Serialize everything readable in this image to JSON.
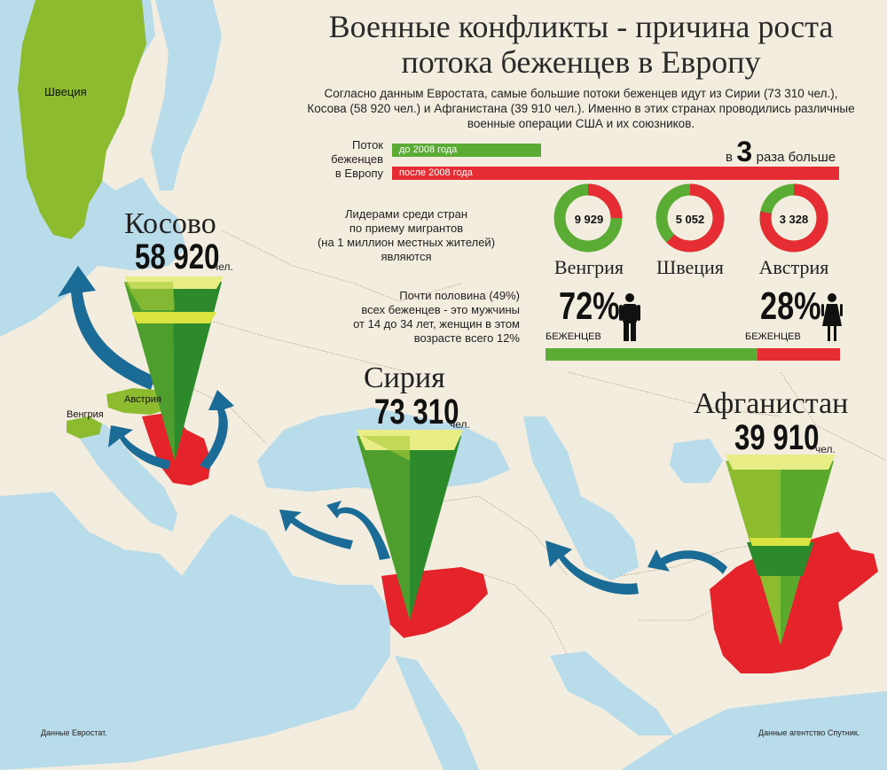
{
  "header": {
    "title_line1": "Военные конфликты - причина роста",
    "title_line2": "потока беженцев в Европу",
    "subtitle": "Согласно данным Евростата, самые большие потоки беженцев идут из Сирии (73 310 чел.), Косова (58 920 чел.) и Афганистана (39 910 чел.). Именно в этих странах проводились различные военные операции США и их союзников."
  },
  "flow_comparison": {
    "label_line1": "Поток",
    "label_line2": "беженцев",
    "label_line3": "в Европу",
    "before_label": "до 2008 года",
    "after_label": "после 2008 года",
    "multiplier_prefix": "в",
    "multiplier_value": 3,
    "multiplier_suffix": "раза больше",
    "color_before": "#5aac34",
    "color_after": "#e52d33"
  },
  "leaders": {
    "label_line1": "Лидерами среди стран",
    "label_line2": "по приему мигрантов",
    "label_line3": "(на 1 миллион местных жителей)",
    "label_line4": "являются",
    "countries": [
      {
        "name": "Венгрия",
        "value": "9 929",
        "red_fraction": 0.25
      },
      {
        "name": "Швеция",
        "value": "5 052",
        "red_fraction": 0.62
      },
      {
        "name": "Австрия",
        "value": "3 328",
        "red_fraction": 0.78
      }
    ]
  },
  "gender": {
    "label_line1": "Почти половина (49%)",
    "label_line2": "всех беженцев - это мужчины",
    "label_line3": "от 14 до 34 лет, женщин в этом",
    "label_line4": "возрасте всего 12%",
    "men_percent": "72%",
    "men_caption": "БЕЖЕНЦЕВ",
    "women_percent": "28%",
    "women_caption": "БЕЖЕНЦЕВ",
    "men_fraction": 0.72,
    "icon_men": "man-icon",
    "icon_women": "woman-icon"
  },
  "map": {
    "labels": {
      "sweden": "Швеция",
      "austria": "Австрия",
      "hungary": "Венгрия"
    },
    "origins": [
      {
        "id": "kosovo",
        "name": "Косово",
        "count": "58 920",
        "unit": "чел."
      },
      {
        "id": "syria",
        "name": "Сирия",
        "count": "73 310",
        "unit": "чел."
      },
      {
        "id": "afghanistan",
        "name": "Афганистан",
        "count": "39 910",
        "unit": "чел."
      }
    ],
    "colors": {
      "sea": "#b9dcea",
      "land": "#f3ede0",
      "destination": "#8dbb30",
      "origin": "#e5232b",
      "arrow": "#1a6b96"
    }
  },
  "sources": {
    "left": "Данные Евростат.",
    "right": "Данные агентство Спутник."
  }
}
